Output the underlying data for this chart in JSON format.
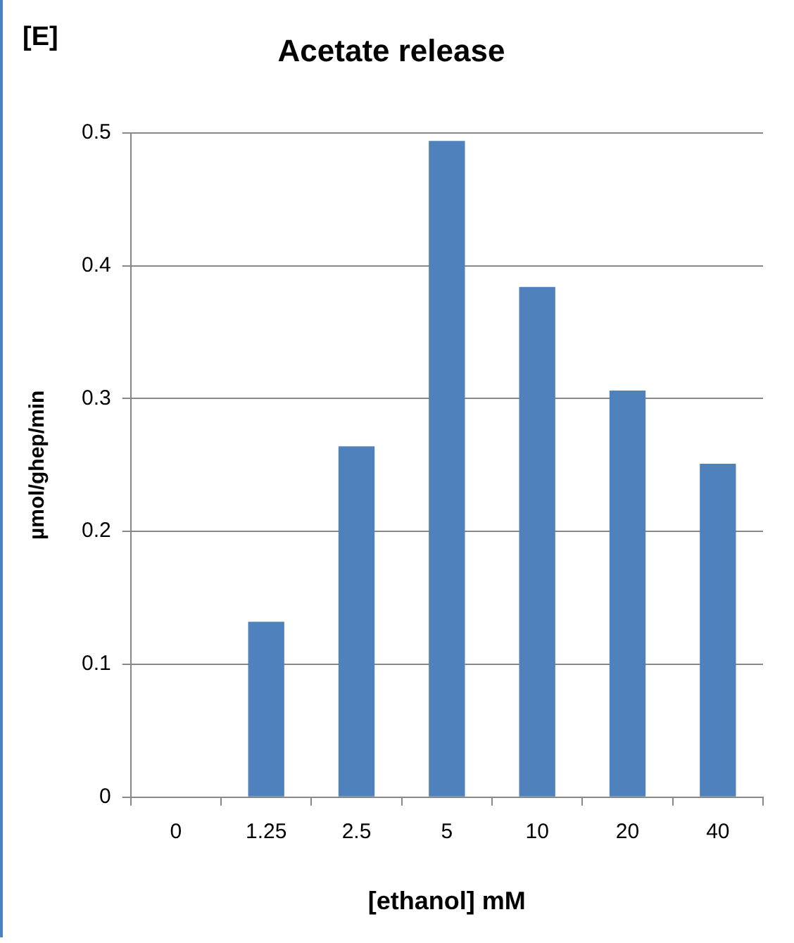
{
  "chart_data": {
    "type": "bar",
    "title": "Acetate release",
    "xlabel": "[ethanol] mM",
    "ylabel": "µmol/ghep/min",
    "annotations": [
      "[E]"
    ],
    "categories": [
      "0",
      "1.25",
      "2.5",
      "5",
      "10",
      "20",
      "40"
    ],
    "values": [
      0,
      0.132,
      0.264,
      0.494,
      0.384,
      0.306,
      0.251
    ],
    "color": "#4f81bd",
    "ylim": [
      0,
      0.5
    ],
    "yticks": [
      0,
      0.1,
      0.2,
      0.3,
      0.4,
      0.5
    ],
    "grid": "y",
    "legend": false
  }
}
